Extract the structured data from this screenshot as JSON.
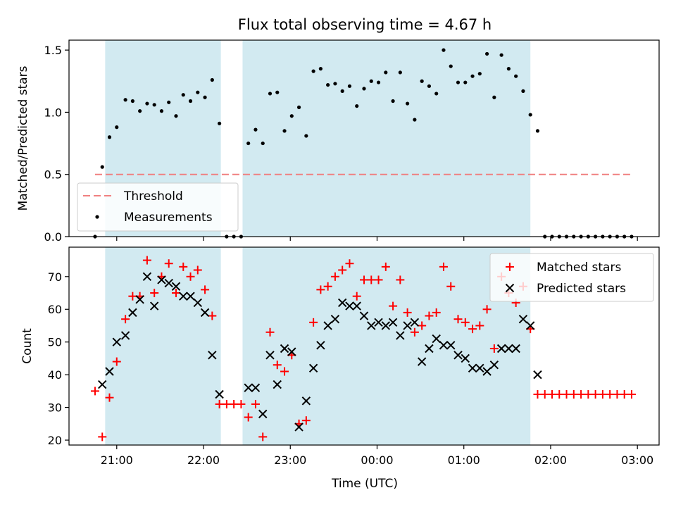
{
  "figure": {
    "title": "Flux total observing time = 4.67 h",
    "xlabel": "Time (UTC)",
    "xticks": [
      "21:00",
      "22:00",
      "23:00",
      "00:00",
      "01:00",
      "02:00",
      "03:00"
    ],
    "colors": {
      "span": "#add8e6",
      "threshold": "#f08080",
      "measurement": "#000000",
      "matched": "#ff0000",
      "predicted": "#000000"
    }
  },
  "chart_data": [
    {
      "type": "scatter",
      "ylabel": "Matched/Predicted stars",
      "ylim": [
        0,
        1.58
      ],
      "yticks": [
        "0.0",
        "0.5",
        "1.0",
        "1.5"
      ],
      "xlim": [
        "20:27",
        "03:15"
      ],
      "grid": false,
      "legend": {
        "position": "lower-left",
        "entries": [
          "Threshold",
          "Measurements"
        ]
      },
      "threshold": {
        "name": "Threshold",
        "value": 0.5,
        "x_range": [
          "20:45",
          "02:55"
        ],
        "style": "dashed"
      },
      "shaded_spans": [
        [
          "20:52",
          "22:12"
        ],
        [
          "22:27",
          "01:46"
        ]
      ],
      "series": [
        {
          "name": "Measurements",
          "points": [
            [
              "20:45",
              0.0
            ],
            [
              "20:50",
              0.56
            ],
            [
              "20:55",
              0.8
            ],
            [
              "21:00",
              0.88
            ],
            [
              "21:06",
              1.1
            ],
            [
              "21:11",
              1.09
            ],
            [
              "21:16",
              1.01
            ],
            [
              "21:21",
              1.07
            ],
            [
              "21:26",
              1.06
            ],
            [
              "21:31",
              1.01
            ],
            [
              "21:36",
              1.08
            ],
            [
              "21:41",
              0.97
            ],
            [
              "21:46",
              1.14
            ],
            [
              "21:51",
              1.09
            ],
            [
              "21:56",
              1.16
            ],
            [
              "22:01",
              1.12
            ],
            [
              "22:06",
              1.26
            ],
            [
              "22:11",
              0.91
            ],
            [
              "22:16",
              0.0
            ],
            [
              "22:21",
              0.0
            ],
            [
              "22:26",
              0.0
            ],
            [
              "22:31",
              0.75
            ],
            [
              "22:36",
              0.86
            ],
            [
              "22:41",
              0.75
            ],
            [
              "22:46",
              1.15
            ],
            [
              "22:51",
              1.16
            ],
            [
              "22:56",
              0.85
            ],
            [
              "23:01",
              0.97
            ],
            [
              "23:06",
              1.04
            ],
            [
              "23:11",
              0.81
            ],
            [
              "23:16",
              1.33
            ],
            [
              "23:21",
              1.35
            ],
            [
              "23:26",
              1.22
            ],
            [
              "23:31",
              1.23
            ],
            [
              "23:36",
              1.17
            ],
            [
              "23:41",
              1.21
            ],
            [
              "23:46",
              1.05
            ],
            [
              "23:51",
              1.19
            ],
            [
              "23:56",
              1.25
            ],
            [
              "00:01",
              1.24
            ],
            [
              "00:06",
              1.32
            ],
            [
              "00:11",
              1.09
            ],
            [
              "00:16",
              1.32
            ],
            [
              "00:21",
              1.07
            ],
            [
              "00:26",
              0.94
            ],
            [
              "00:31",
              1.25
            ],
            [
              "00:36",
              1.21
            ],
            [
              "00:41",
              1.15
            ],
            [
              "00:46",
              1.5
            ],
            [
              "00:51",
              1.37
            ],
            [
              "00:56",
              1.24
            ],
            [
              "01:01",
              1.24
            ],
            [
              "01:06",
              1.29
            ],
            [
              "01:11",
              1.31
            ],
            [
              "01:16",
              1.47
            ],
            [
              "01:21",
              1.12
            ],
            [
              "01:26",
              1.46
            ],
            [
              "01:31",
              1.35
            ],
            [
              "01:36",
              1.29
            ],
            [
              "01:41",
              1.17
            ],
            [
              "01:46",
              0.98
            ],
            [
              "01:51",
              0.85
            ],
            [
              "01:56",
              0.0
            ],
            [
              "02:01",
              0.0
            ],
            [
              "02:06",
              0.0
            ],
            [
              "02:11",
              0.0
            ],
            [
              "02:16",
              0.0
            ],
            [
              "02:21",
              0.0
            ],
            [
              "02:26",
              0.0
            ],
            [
              "02:31",
              0.0
            ],
            [
              "02:36",
              0.0
            ],
            [
              "02:41",
              0.0
            ],
            [
              "02:46",
              0.0
            ],
            [
              "02:51",
              0.0
            ],
            [
              "02:56",
              0.0
            ]
          ]
        }
      ]
    },
    {
      "type": "scatter",
      "ylabel": "Count",
      "ylim": [
        18.5,
        79
      ],
      "yticks": [
        "20",
        "30",
        "40",
        "50",
        "60",
        "70"
      ],
      "xlim": [
        "20:27",
        "03:15"
      ],
      "grid": false,
      "legend": {
        "position": "upper-right",
        "entries": [
          "Matched stars",
          "Predicted stars"
        ]
      },
      "shaded_spans": [
        [
          "20:52",
          "22:12"
        ],
        [
          "22:27",
          "01:46"
        ]
      ],
      "series": [
        {
          "name": "Matched stars",
          "marker": "plus",
          "points": [
            [
              "20:45",
              35
            ],
            [
              "20:50",
              21
            ],
            [
              "20:55",
              33
            ],
            [
              "21:00",
              44
            ],
            [
              "21:06",
              57
            ],
            [
              "21:11",
              64
            ],
            [
              "21:16",
              64
            ],
            [
              "21:21",
              75
            ],
            [
              "21:26",
              65
            ],
            [
              "21:31",
              70
            ],
            [
              "21:36",
              74
            ],
            [
              "21:41",
              65
            ],
            [
              "21:46",
              73
            ],
            [
              "21:51",
              70
            ],
            [
              "21:56",
              72
            ],
            [
              "22:01",
              66
            ],
            [
              "22:06",
              58
            ],
            [
              "22:11",
              31
            ],
            [
              "22:16",
              31
            ],
            [
              "22:21",
              31
            ],
            [
              "22:26",
              31
            ],
            [
              "22:31",
              27
            ],
            [
              "22:36",
              31
            ],
            [
              "22:41",
              21
            ],
            [
              "22:46",
              53
            ],
            [
              "22:51",
              43
            ],
            [
              "22:56",
              41
            ],
            [
              "23:01",
              46
            ],
            [
              "23:06",
              25
            ],
            [
              "23:11",
              26
            ],
            [
              "23:16",
              56
            ],
            [
              "23:21",
              66
            ],
            [
              "23:26",
              67
            ],
            [
              "23:31",
              70
            ],
            [
              "23:36",
              72
            ],
            [
              "23:41",
              74
            ],
            [
              "23:46",
              64
            ],
            [
              "23:51",
              69
            ],
            [
              "23:56",
              69
            ],
            [
              "00:01",
              69
            ],
            [
              "00:06",
              73
            ],
            [
              "00:11",
              61
            ],
            [
              "00:16",
              69
            ],
            [
              "00:21",
              59
            ],
            [
              "00:26",
              53
            ],
            [
              "00:31",
              55
            ],
            [
              "00:36",
              58
            ],
            [
              "00:41",
              59
            ],
            [
              "00:46",
              73
            ],
            [
              "00:51",
              67
            ],
            [
              "00:56",
              57
            ],
            [
              "01:01",
              56
            ],
            [
              "01:06",
              54
            ],
            [
              "01:11",
              55
            ],
            [
              "01:16",
              60
            ],
            [
              "01:21",
              48
            ],
            [
              "01:26",
              70
            ],
            [
              "01:31",
              65
            ],
            [
              "01:36",
              62
            ],
            [
              "01:41",
              67
            ],
            [
              "01:46",
              54
            ],
            [
              "01:51",
              34
            ],
            [
              "01:56",
              34
            ],
            [
              "02:01",
              34
            ],
            [
              "02:06",
              34
            ],
            [
              "02:11",
              34
            ],
            [
              "02:16",
              34
            ],
            [
              "02:21",
              34
            ],
            [
              "02:26",
              34
            ],
            [
              "02:31",
              34
            ],
            [
              "02:36",
              34
            ],
            [
              "02:41",
              34
            ],
            [
              "02:46",
              34
            ],
            [
              "02:51",
              34
            ],
            [
              "02:56",
              34
            ]
          ]
        },
        {
          "name": "Predicted stars",
          "marker": "x",
          "points": [
            [
              "20:50",
              37
            ],
            [
              "20:55",
              41
            ],
            [
              "21:00",
              50
            ],
            [
              "21:06",
              52
            ],
            [
              "21:11",
              59
            ],
            [
              "21:16",
              63
            ],
            [
              "21:21",
              70
            ],
            [
              "21:26",
              61
            ],
            [
              "21:31",
              69
            ],
            [
              "21:36",
              68
            ],
            [
              "21:41",
              67
            ],
            [
              "21:46",
              64
            ],
            [
              "21:51",
              64
            ],
            [
              "21:56",
              62
            ],
            [
              "22:01",
              59
            ],
            [
              "22:06",
              46
            ],
            [
              "22:11",
              34
            ],
            [
              "22:31",
              36
            ],
            [
              "22:36",
              36
            ],
            [
              "22:41",
              28
            ],
            [
              "22:46",
              46
            ],
            [
              "22:51",
              37
            ],
            [
              "22:56",
              48
            ],
            [
              "23:01",
              47
            ],
            [
              "23:06",
              24
            ],
            [
              "23:11",
              32
            ],
            [
              "23:16",
              42
            ],
            [
              "23:21",
              49
            ],
            [
              "23:26",
              55
            ],
            [
              "23:31",
              57
            ],
            [
              "23:36",
              62
            ],
            [
              "23:41",
              61
            ],
            [
              "23:46",
              61
            ],
            [
              "23:51",
              58
            ],
            [
              "23:56",
              55
            ],
            [
              "00:01",
              56
            ],
            [
              "00:06",
              55
            ],
            [
              "00:11",
              56
            ],
            [
              "00:16",
              52
            ],
            [
              "00:21",
              55
            ],
            [
              "00:26",
              56
            ],
            [
              "00:31",
              44
            ],
            [
              "00:36",
              48
            ],
            [
              "00:41",
              51
            ],
            [
              "00:46",
              49
            ],
            [
              "00:51",
              49
            ],
            [
              "00:56",
              46
            ],
            [
              "01:01",
              45
            ],
            [
              "01:06",
              42
            ],
            [
              "01:11",
              42
            ],
            [
              "01:16",
              41
            ],
            [
              "01:21",
              43
            ],
            [
              "01:26",
              48
            ],
            [
              "01:31",
              48
            ],
            [
              "01:36",
              48
            ],
            [
              "01:41",
              57
            ],
            [
              "01:46",
              55
            ],
            [
              "01:51",
              40
            ]
          ]
        }
      ]
    }
  ]
}
